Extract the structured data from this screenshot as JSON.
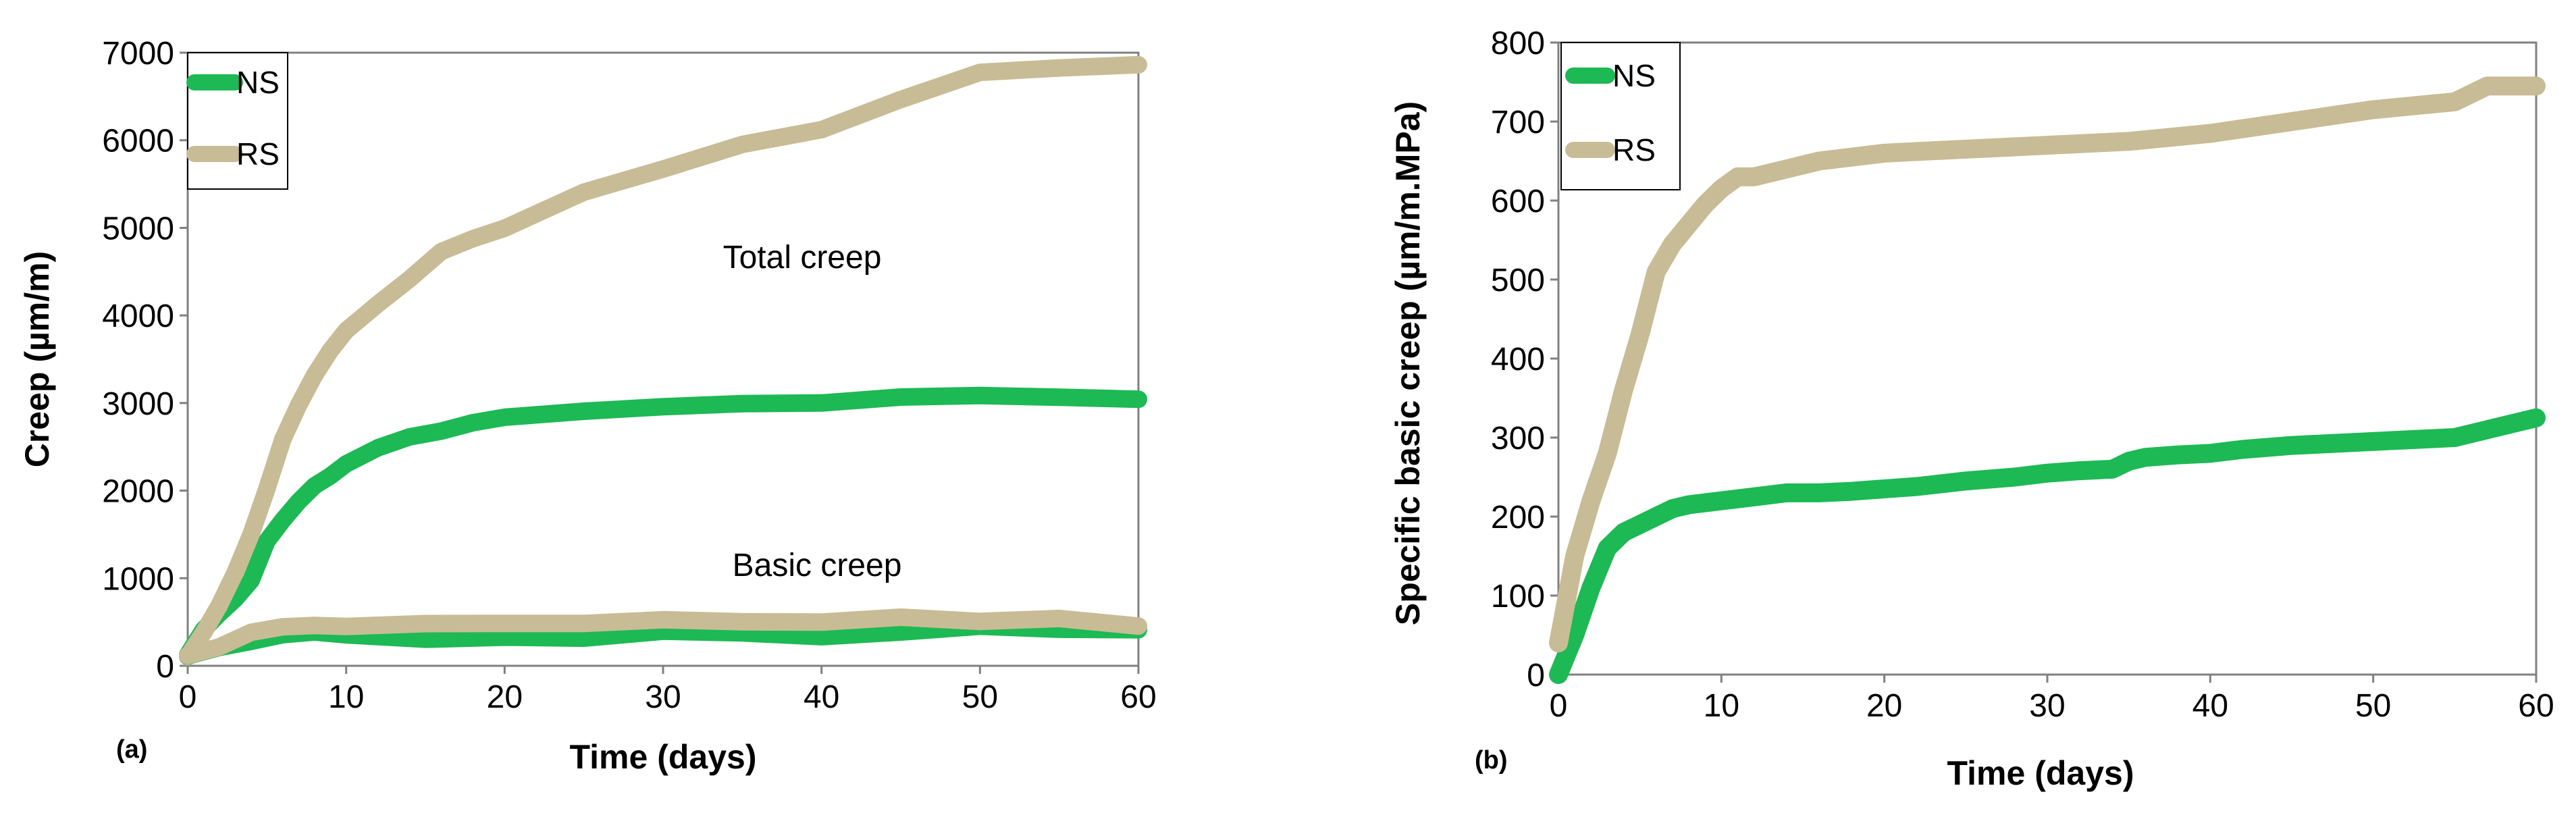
{
  "chart_data": [
    {
      "type": "line",
      "panel_label": "(a)",
      "xlabel": "Time (days)",
      "ylabel": "Creep (µm/m)",
      "xlim": [
        0,
        60
      ],
      "ylim": [
        0,
        7000
      ],
      "xticks": [
        0,
        10,
        20,
        30,
        40,
        50,
        60
      ],
      "yticks": [
        0,
        1000,
        2000,
        3000,
        4000,
        5000,
        6000,
        7000
      ],
      "legend_position": "top-left",
      "legend": [
        "NS",
        "RS"
      ],
      "annotations": [
        {
          "text": "Total creep",
          "x": 33,
          "y": 4500
        },
        {
          "text": "Basic creep",
          "x": 38,
          "y": 1150
        }
      ],
      "series": [
        {
          "name": "NS",
          "group": "total",
          "color": "#1db954",
          "x": [
            0,
            1,
            2,
            3,
            4,
            5,
            6,
            7,
            8,
            9,
            10,
            12,
            14,
            16,
            18,
            20,
            25,
            30,
            35,
            40,
            45,
            50,
            55,
            60
          ],
          "y": [
            100,
            400,
            600,
            800,
            1000,
            1400,
            1700,
            1900,
            2050,
            2200,
            2300,
            2500,
            2600,
            2700,
            2780,
            2850,
            2900,
            2930,
            2980,
            3000,
            3030,
            3060,
            3060,
            3080
          ]
        },
        {
          "name": "RS",
          "group": "total",
          "color": "#c8bc96",
          "x": [
            0,
            1,
            2,
            3,
            4,
            5,
            6,
            7,
            8,
            9,
            10,
            12,
            14,
            16,
            18,
            20,
            25,
            30,
            35,
            40,
            45,
            50,
            55,
            60
          ],
          "y": [
            100,
            400,
            700,
            1100,
            1500,
            2000,
            2600,
            3000,
            3300,
            3600,
            3800,
            4100,
            4400,
            4700,
            4900,
            5000,
            5400,
            5700,
            5950,
            6100,
            6450,
            6750,
            6800,
            6830
          ]
        },
        {
          "name": "NS",
          "group": "basic",
          "color": "#1db954",
          "x": [
            0,
            2,
            4,
            6,
            8,
            10,
            15,
            20,
            25,
            30,
            35,
            40,
            45,
            50,
            55,
            60
          ],
          "y": [
            100,
            200,
            280,
            330,
            350,
            330,
            310,
            300,
            330,
            370,
            340,
            350,
            380,
            420,
            400,
            380
          ]
        },
        {
          "name": "RS",
          "group": "basic",
          "color": "#c8bc96",
          "x": [
            0,
            2,
            4,
            6,
            8,
            10,
            15,
            20,
            25,
            30,
            35,
            40,
            45,
            50,
            55,
            60
          ],
          "y": [
            100,
            250,
            350,
            420,
            460,
            480,
            470,
            490,
            500,
            560,
            480,
            510,
            520,
            470,
            540,
            450
          ]
        }
      ]
    },
    {
      "type": "line",
      "panel_label": "(b)",
      "xlabel": "Time (days)",
      "ylabel": "Specific basic creep (µm/m.MPa)",
      "xlim": [
        0,
        60
      ],
      "ylim": [
        0,
        800
      ],
      "xticks": [
        0,
        10,
        20,
        30,
        40,
        50,
        60
      ],
      "yticks": [
        0,
        100,
        200,
        300,
        400,
        500,
        600,
        700,
        800
      ],
      "legend_position": "top-left",
      "legend": [
        "NS",
        "RS"
      ],
      "series": [
        {
          "name": "NS",
          "color": "#1db954",
          "x": [
            0,
            1,
            2,
            3,
            4,
            5,
            6,
            7,
            8,
            10,
            12,
            14,
            16,
            18,
            20,
            22,
            25,
            28,
            30,
            32,
            34,
            35,
            36,
            38,
            40,
            42,
            45,
            50,
            55,
            57,
            60
          ],
          "y": [
            0,
            50,
            110,
            160,
            180,
            190,
            200,
            210,
            215,
            220,
            225,
            230,
            230,
            232,
            235,
            238,
            245,
            250,
            255,
            258,
            260,
            270,
            275,
            278,
            280,
            285,
            290,
            295,
            300,
            310,
            325
          ]
        },
        {
          "name": "RS",
          "color": "#c8bc96",
          "x": [
            0,
            1,
            2,
            3,
            4,
            5,
            6,
            7,
            8,
            9,
            10,
            11,
            12,
            14,
            16,
            18,
            20,
            25,
            30,
            35,
            40,
            45,
            50,
            55,
            57,
            60
          ],
          "y": [
            40,
            150,
            220,
            280,
            360,
            430,
            510,
            545,
            570,
            595,
            615,
            630,
            630,
            640,
            650,
            655,
            660,
            665,
            670,
            675,
            685,
            700,
            715,
            725,
            745,
            745
          ]
        }
      ]
    }
  ]
}
